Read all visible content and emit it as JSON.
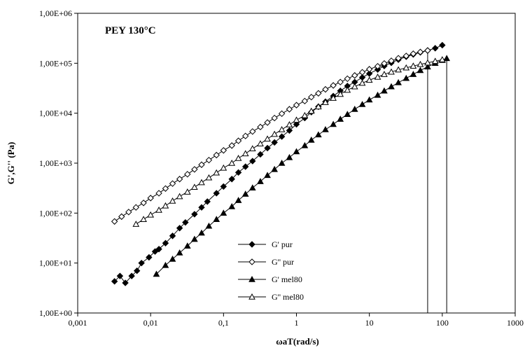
{
  "chart_data": {
    "type": "scatter",
    "title": "PEY 130°C",
    "xlabel": "ωaT(rad/s)",
    "ylabel": "G',G'' (Pa)",
    "x_scale": "log",
    "y_scale": "log",
    "xlim": [
      0.001,
      1000
    ],
    "ylim": [
      1,
      1000000
    ],
    "x_tick_labels": [
      "0,001",
      "0,01",
      "0,1",
      "1",
      "10",
      "100",
      "1000"
    ],
    "y_tick_labels": [
      "1,00E+00",
      "1,00E+01",
      "1,00E+02",
      "1,00E+03",
      "1,00E+04",
      "1,00E+05",
      "1,00E+06"
    ],
    "grid": false,
    "legend_position": "bottom-center",
    "series": [
      {
        "name": "G' pur",
        "marker": "filled-diamond",
        "points": [
          [
            0.0032,
            4.3
          ],
          [
            0.0038,
            5.5
          ],
          [
            0.0045,
            4.0
          ],
          [
            0.0055,
            5.5
          ],
          [
            0.0065,
            7.0
          ],
          [
            0.0075,
            10.0
          ],
          [
            0.0095,
            13.0
          ],
          [
            0.0115,
            17.0
          ],
          [
            0.013,
            19.0
          ],
          [
            0.016,
            25.0
          ],
          [
            0.02,
            35.0
          ],
          [
            0.025,
            50.0
          ],
          [
            0.03,
            65.0
          ],
          [
            0.04,
            95.0
          ],
          [
            0.05,
            130.0
          ],
          [
            0.06,
            170.0
          ],
          [
            0.08,
            250.0
          ],
          [
            0.1,
            340.0
          ],
          [
            0.13,
            480.0
          ],
          [
            0.16,
            650.0
          ],
          [
            0.2,
            850.0
          ],
          [
            0.25,
            1100.0
          ],
          [
            0.32,
            1500.0
          ],
          [
            0.4,
            2000.0
          ],
          [
            0.5,
            2600.0
          ],
          [
            0.63,
            3400.0
          ],
          [
            0.8,
            4500.0
          ],
          [
            1.0,
            6000.0
          ],
          [
            1.3,
            8000.0
          ],
          [
            1.6,
            10500.0
          ],
          [
            2.0,
            13500.0
          ],
          [
            2.5,
            17000.0
          ],
          [
            3.2,
            22000.0
          ],
          [
            4.0,
            28000.0
          ],
          [
            5.0,
            35000.0
          ],
          [
            6.3,
            42000.0
          ],
          [
            8.0,
            52000.0
          ],
          [
            10.0,
            62000.0
          ],
          [
            13.0,
            75000.0
          ],
          [
            16.0,
            88000.0
          ],
          [
            20.0,
            102000.0
          ],
          [
            25.0,
            118000.0
          ],
          [
            32.0,
            135000.0
          ],
          [
            40.0,
            150000.0
          ],
          [
            50.0,
            165000.0
          ],
          [
            63.0,
            180000.0
          ],
          [
            80.0,
            200000.0
          ],
          [
            100.0,
            230000.0
          ]
        ]
      },
      {
        "name": "G'' pur",
        "marker": "open-diamond",
        "points": [
          [
            0.0032,
            68.0
          ],
          [
            0.004,
            85.0
          ],
          [
            0.005,
            105.0
          ],
          [
            0.0063,
            130.0
          ],
          [
            0.008,
            160.0
          ],
          [
            0.01,
            200.0
          ],
          [
            0.013,
            250.0
          ],
          [
            0.016,
            310.0
          ],
          [
            0.02,
            390.0
          ],
          [
            0.025,
            480.0
          ],
          [
            0.032,
            600.0
          ],
          [
            0.04,
            750.0
          ],
          [
            0.05,
            930.0
          ],
          [
            0.063,
            1150.0
          ],
          [
            0.08,
            1450.0
          ],
          [
            0.1,
            1800.0
          ],
          [
            0.13,
            2250.0
          ],
          [
            0.16,
            2800.0
          ],
          [
            0.2,
            3500.0
          ],
          [
            0.25,
            4300.0
          ],
          [
            0.32,
            5300.0
          ],
          [
            0.4,
            6500.0
          ],
          [
            0.5,
            8000.0
          ],
          [
            0.63,
            9800.0
          ],
          [
            0.8,
            12000.0
          ],
          [
            1.0,
            14500.0
          ],
          [
            1.3,
            17500.0
          ],
          [
            1.6,
            21000.0
          ],
          [
            2.0,
            25000.0
          ],
          [
            2.5,
            30000.0
          ],
          [
            3.2,
            36000.0
          ],
          [
            4.0,
            42000.0
          ],
          [
            5.0,
            49000.0
          ],
          [
            6.3,
            57000.0
          ],
          [
            8.0,
            66000.0
          ],
          [
            10.0,
            76000.0
          ],
          [
            13.0,
            87000.0
          ],
          [
            16.0,
            99000.0
          ],
          [
            20.0,
            112000.0
          ],
          [
            25.0,
            126000.0
          ],
          [
            32.0,
            140000.0
          ],
          [
            40.0,
            155000.0
          ],
          [
            50.0,
            168000.0
          ],
          [
            63.0,
            180000.0
          ]
        ]
      },
      {
        "name": "G' mel80",
        "marker": "filled-triangle",
        "points": [
          [
            0.012,
            6.0
          ],
          [
            0.016,
            9.0
          ],
          [
            0.02,
            12.0
          ],
          [
            0.025,
            16.0
          ],
          [
            0.032,
            22.0
          ],
          [
            0.04,
            30.0
          ],
          [
            0.05,
            40.0
          ],
          [
            0.063,
            55.0
          ],
          [
            0.08,
            75.0
          ],
          [
            0.1,
            100.0
          ],
          [
            0.13,
            135.0
          ],
          [
            0.16,
            180.0
          ],
          [
            0.2,
            240.0
          ],
          [
            0.25,
            320.0
          ],
          [
            0.32,
            430.0
          ],
          [
            0.4,
            570.0
          ],
          [
            0.5,
            750.0
          ],
          [
            0.63,
            1000.0
          ],
          [
            0.8,
            1300.0
          ],
          [
            1.0,
            1700.0
          ],
          [
            1.3,
            2250.0
          ],
          [
            1.6,
            2900.0
          ],
          [
            2.0,
            3700.0
          ],
          [
            2.5,
            4700.0
          ],
          [
            3.2,
            6000.0
          ],
          [
            4.0,
            7600.0
          ],
          [
            5.0,
            9500.0
          ],
          [
            6.3,
            12000.0
          ],
          [
            8.0,
            15000.0
          ],
          [
            10.0,
            18500.0
          ],
          [
            13.0,
            23000.0
          ],
          [
            16.0,
            28000.0
          ],
          [
            20.0,
            34000.0
          ],
          [
            25.0,
            41000.0
          ],
          [
            32.0,
            50000.0
          ],
          [
            40.0,
            60000.0
          ],
          [
            50.0,
            72000.0
          ],
          [
            63.0,
            85000.0
          ],
          [
            80.0,
            100000.0
          ],
          [
            100.0,
            115000.0
          ],
          [
            115.0,
            125000.0
          ]
        ]
      },
      {
        "name": "G'' mel80",
        "marker": "open-triangle",
        "points": [
          [
            0.0063,
            60.0
          ],
          [
            0.008,
            75.0
          ],
          [
            0.01,
            92.0
          ],
          [
            0.013,
            115.0
          ],
          [
            0.016,
            140.0
          ],
          [
            0.02,
            175.0
          ],
          [
            0.025,
            215.0
          ],
          [
            0.032,
            265.0
          ],
          [
            0.04,
            330.0
          ],
          [
            0.05,
            410.0
          ],
          [
            0.063,
            510.0
          ],
          [
            0.08,
            640.0
          ],
          [
            0.1,
            800.0
          ],
          [
            0.13,
            1000.0
          ],
          [
            0.16,
            1250.0
          ],
          [
            0.2,
            1550.0
          ],
          [
            0.25,
            1950.0
          ],
          [
            0.32,
            2450.0
          ],
          [
            0.4,
            3050.0
          ],
          [
            0.5,
            3800.0
          ],
          [
            0.63,
            4700.0
          ],
          [
            0.8,
            5900.0
          ],
          [
            1.0,
            7300.0
          ],
          [
            1.3,
            9000.0
          ],
          [
            1.6,
            11000.0
          ],
          [
            2.0,
            13500.0
          ],
          [
            2.5,
            16500.0
          ],
          [
            3.2,
            20000.0
          ],
          [
            4.0,
            24000.0
          ],
          [
            5.0,
            29000.0
          ],
          [
            6.3,
            34000.0
          ],
          [
            8.0,
            40000.0
          ],
          [
            10.0,
            46000.0
          ],
          [
            13.0,
            53000.0
          ],
          [
            16.0,
            60000.0
          ],
          [
            20.0,
            67000.0
          ],
          [
            25.0,
            74000.0
          ],
          [
            32.0,
            81000.0
          ],
          [
            40.0,
            88000.0
          ],
          [
            50.0,
            95000.0
          ],
          [
            63.0,
            102000.0
          ],
          [
            80.0,
            110000.0
          ],
          [
            100.0,
            118000.0
          ]
        ]
      }
    ],
    "reference_lines": [
      {
        "x": 63.0,
        "y_from": 1,
        "y_to": 180000
      },
      {
        "x": 115.0,
        "y_from": 1,
        "y_to": 125000
      }
    ]
  }
}
